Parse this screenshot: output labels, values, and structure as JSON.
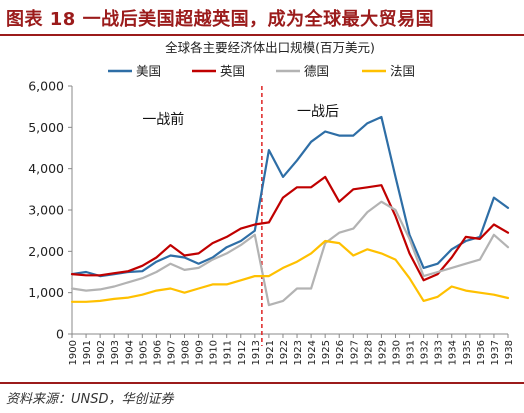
{
  "header": {
    "title": "图表 18  一战后美国超越英国，成为全球最大贸易国"
  },
  "source": "资料来源：UNSD，华创证券",
  "colors": {
    "brand": "#9b1b1b",
    "us": "#2e6ea6",
    "uk": "#c00000",
    "de": "#b3b3b3",
    "fr": "#ffc000",
    "divider": "#e03030"
  },
  "chart_data": {
    "type": "line",
    "title": "全球各主要经济体出口规模(百万美元)",
    "xlabel": "",
    "ylabel": "",
    "categories": [
      "1900",
      "1901",
      "1902",
      "1903",
      "1904",
      "1905",
      "1906",
      "1907",
      "1908",
      "1909",
      "1910",
      "1911",
      "1912",
      "1913",
      "1921",
      "1922",
      "1923",
      "1924",
      "1925",
      "1926",
      "1927",
      "1928",
      "1929",
      "1930",
      "1931",
      "1932",
      "1933",
      "1934",
      "1935",
      "1936",
      "1937",
      "1938"
    ],
    "ylim": [
      0,
      6000
    ],
    "yticks": [
      0,
      1000,
      2000,
      3000,
      4000,
      5000,
      6000
    ],
    "ytick_labels": [
      "0",
      "1,000",
      "2,000",
      "3,000",
      "4,000",
      "5,000",
      "6,000"
    ],
    "grid": false,
    "legend": "top",
    "series": [
      {
        "name": "美国",
        "color": "#2e6ea6",
        "values": [
          1450,
          1500,
          1400,
          1450,
          1500,
          1520,
          1750,
          1900,
          1850,
          1700,
          1850,
          2100,
          2250,
          2500,
          4450,
          3800,
          4200,
          4650,
          4900,
          4800,
          4800,
          5100,
          5250,
          3800,
          2400,
          1600,
          1700,
          2050,
          2250,
          2350,
          3300,
          3050
        ]
      },
      {
        "name": "英国",
        "color": "#c00000",
        "values": [
          1450,
          1420,
          1420,
          1470,
          1520,
          1650,
          1850,
          2150,
          1900,
          1950,
          2200,
          2350,
          2550,
          2650,
          2700,
          3300,
          3550,
          3550,
          3800,
          3200,
          3500,
          3550,
          3600,
          2850,
          1950,
          1300,
          1450,
          1850,
          2350,
          2300,
          2650,
          2450
        ]
      },
      {
        "name": "德国",
        "color": "#b3b3b3",
        "values": [
          1100,
          1050,
          1080,
          1150,
          1250,
          1350,
          1500,
          1700,
          1550,
          1600,
          1800,
          1950,
          2150,
          2400,
          700,
          800,
          1100,
          1100,
          2200,
          2450,
          2550,
          2950,
          3200,
          3000,
          2300,
          1400,
          1500,
          1600,
          1700,
          1800,
          2400,
          2100
        ]
      },
      {
        "name": "法国",
        "color": "#ffc000",
        "values": [
          780,
          780,
          800,
          850,
          880,
          950,
          1050,
          1100,
          1000,
          1100,
          1200,
          1200,
          1300,
          1400,
          1400,
          1600,
          1750,
          1950,
          2250,
          2200,
          1900,
          2050,
          1950,
          1800,
          1350,
          800,
          900,
          1150,
          1050,
          1000,
          950,
          870
        ]
      }
    ],
    "annotations": [
      {
        "text": "一战前",
        "x_category": "1905",
        "y": 5200
      },
      {
        "text": "一战后",
        "x_category": "1923",
        "y": 5400
      }
    ],
    "divider_between": [
      "1913",
      "1921"
    ]
  }
}
